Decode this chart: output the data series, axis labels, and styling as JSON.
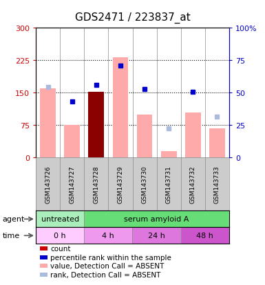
{
  "title": "GDS2471 / 223837_at",
  "samples": [
    "GSM143726",
    "GSM143727",
    "GSM143728",
    "GSM143729",
    "GSM143730",
    "GSM143731",
    "GSM143732",
    "GSM143733"
  ],
  "bar_values": [
    160,
    75,
    152,
    232,
    100,
    15,
    105,
    68
  ],
  "bar_colors": [
    "#ffaaaa",
    "#ffaaaa",
    "#8b0000",
    "#ffaaaa",
    "#ffaaaa",
    "#ffaaaa",
    "#ffaaaa",
    "#ffaaaa"
  ],
  "rank_dots": [
    null,
    130,
    168,
    213,
    158,
    null,
    152,
    null
  ],
  "rank_absent_dots": [
    163,
    null,
    null,
    null,
    null,
    68,
    null,
    95
  ],
  "ylim_left": [
    0,
    300
  ],
  "ylim_right": [
    0,
    100
  ],
  "yticks_left": [
    0,
    75,
    150,
    225,
    300
  ],
  "yticks_right": [
    0,
    25,
    50,
    75,
    100
  ],
  "ytick_labels_left": [
    "0",
    "75",
    "150",
    "225",
    "300"
  ],
  "ytick_labels_right": [
    "0",
    "25",
    "50",
    "75",
    "100%"
  ],
  "left_color": "#cc0000",
  "right_color": "#0000cc",
  "agent_row": [
    {
      "label": "untreated",
      "start": 0,
      "end": 2,
      "color": "#aaeebb"
    },
    {
      "label": "serum amyloid A",
      "start": 2,
      "end": 8,
      "color": "#66dd77"
    }
  ],
  "time_row": [
    {
      "label": "0 h",
      "start": 0,
      "end": 2,
      "color": "#ffccff"
    },
    {
      "label": "4 h",
      "start": 2,
      "end": 4,
      "color": "#ee99ee"
    },
    {
      "label": "24 h",
      "start": 4,
      "end": 6,
      "color": "#dd77dd"
    },
    {
      "label": "48 h",
      "start": 6,
      "end": 8,
      "color": "#cc55cc"
    }
  ],
  "legend_items": [
    {
      "color": "#cc0000",
      "label": "count"
    },
    {
      "color": "#0000cd",
      "label": "percentile rank within the sample"
    },
    {
      "color": "#ffaaaa",
      "label": "value, Detection Call = ABSENT"
    },
    {
      "color": "#aabbdd",
      "label": "rank, Detection Call = ABSENT"
    }
  ],
  "background_color": "#ffffff",
  "plot_bg": "#ffffff"
}
